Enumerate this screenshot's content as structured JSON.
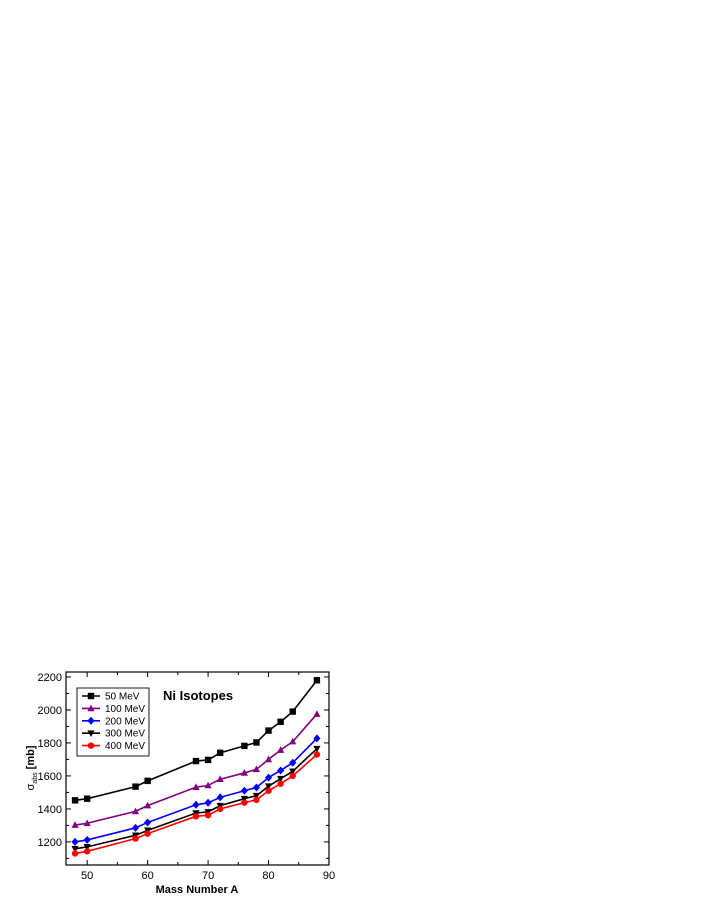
{
  "chart_data": {
    "type": "line",
    "title": "",
    "annotation": "Ni Isotopes",
    "xlabel": "Mass Number A",
    "ylabel_main": "σ",
    "ylabel_sub": "abs",
    "ylabel_unit": " [mb]",
    "xlim": [
      46.5,
      90
    ],
    "ylim": [
      1060,
      2230
    ],
    "xticks": [
      50,
      60,
      70,
      80,
      90
    ],
    "yticks": [
      1200,
      1400,
      1600,
      1800,
      2000,
      2200
    ],
    "grid": false,
    "legend_placement": "top-left",
    "x": [
      48,
      50,
      58,
      60,
      68,
      70,
      72,
      76,
      78,
      80,
      82,
      84,
      88
    ],
    "series": [
      {
        "name": "50 MeV",
        "color": "#000000",
        "marker": "square",
        "values": [
          1452,
          1462,
          1535,
          1570,
          1690,
          1697,
          1740,
          1782,
          1803,
          1875,
          1928,
          1990,
          2180
        ]
      },
      {
        "name": "100 MeV",
        "color": "#800080",
        "marker": "triangle-up",
        "values": [
          1302,
          1313,
          1385,
          1420,
          1532,
          1542,
          1580,
          1618,
          1640,
          1700,
          1757,
          1808,
          1975
        ]
      },
      {
        "name": "200 MeV",
        "color": "#0000ff",
        "marker": "diamond",
        "values": [
          1200,
          1212,
          1285,
          1318,
          1425,
          1437,
          1470,
          1510,
          1530,
          1590,
          1633,
          1680,
          1828
        ]
      },
      {
        "name": "300 MeV",
        "color": "#000000",
        "marker": "triangle-down",
        "values": [
          1158,
          1170,
          1240,
          1270,
          1375,
          1382,
          1420,
          1462,
          1480,
          1538,
          1583,
          1628,
          1765
        ]
      },
      {
        "name": "400 MeV",
        "color": "#ff0000",
        "marker": "circle",
        "values": [
          1130,
          1143,
          1220,
          1250,
          1355,
          1362,
          1400,
          1438,
          1455,
          1510,
          1553,
          1600,
          1730
        ]
      }
    ]
  }
}
